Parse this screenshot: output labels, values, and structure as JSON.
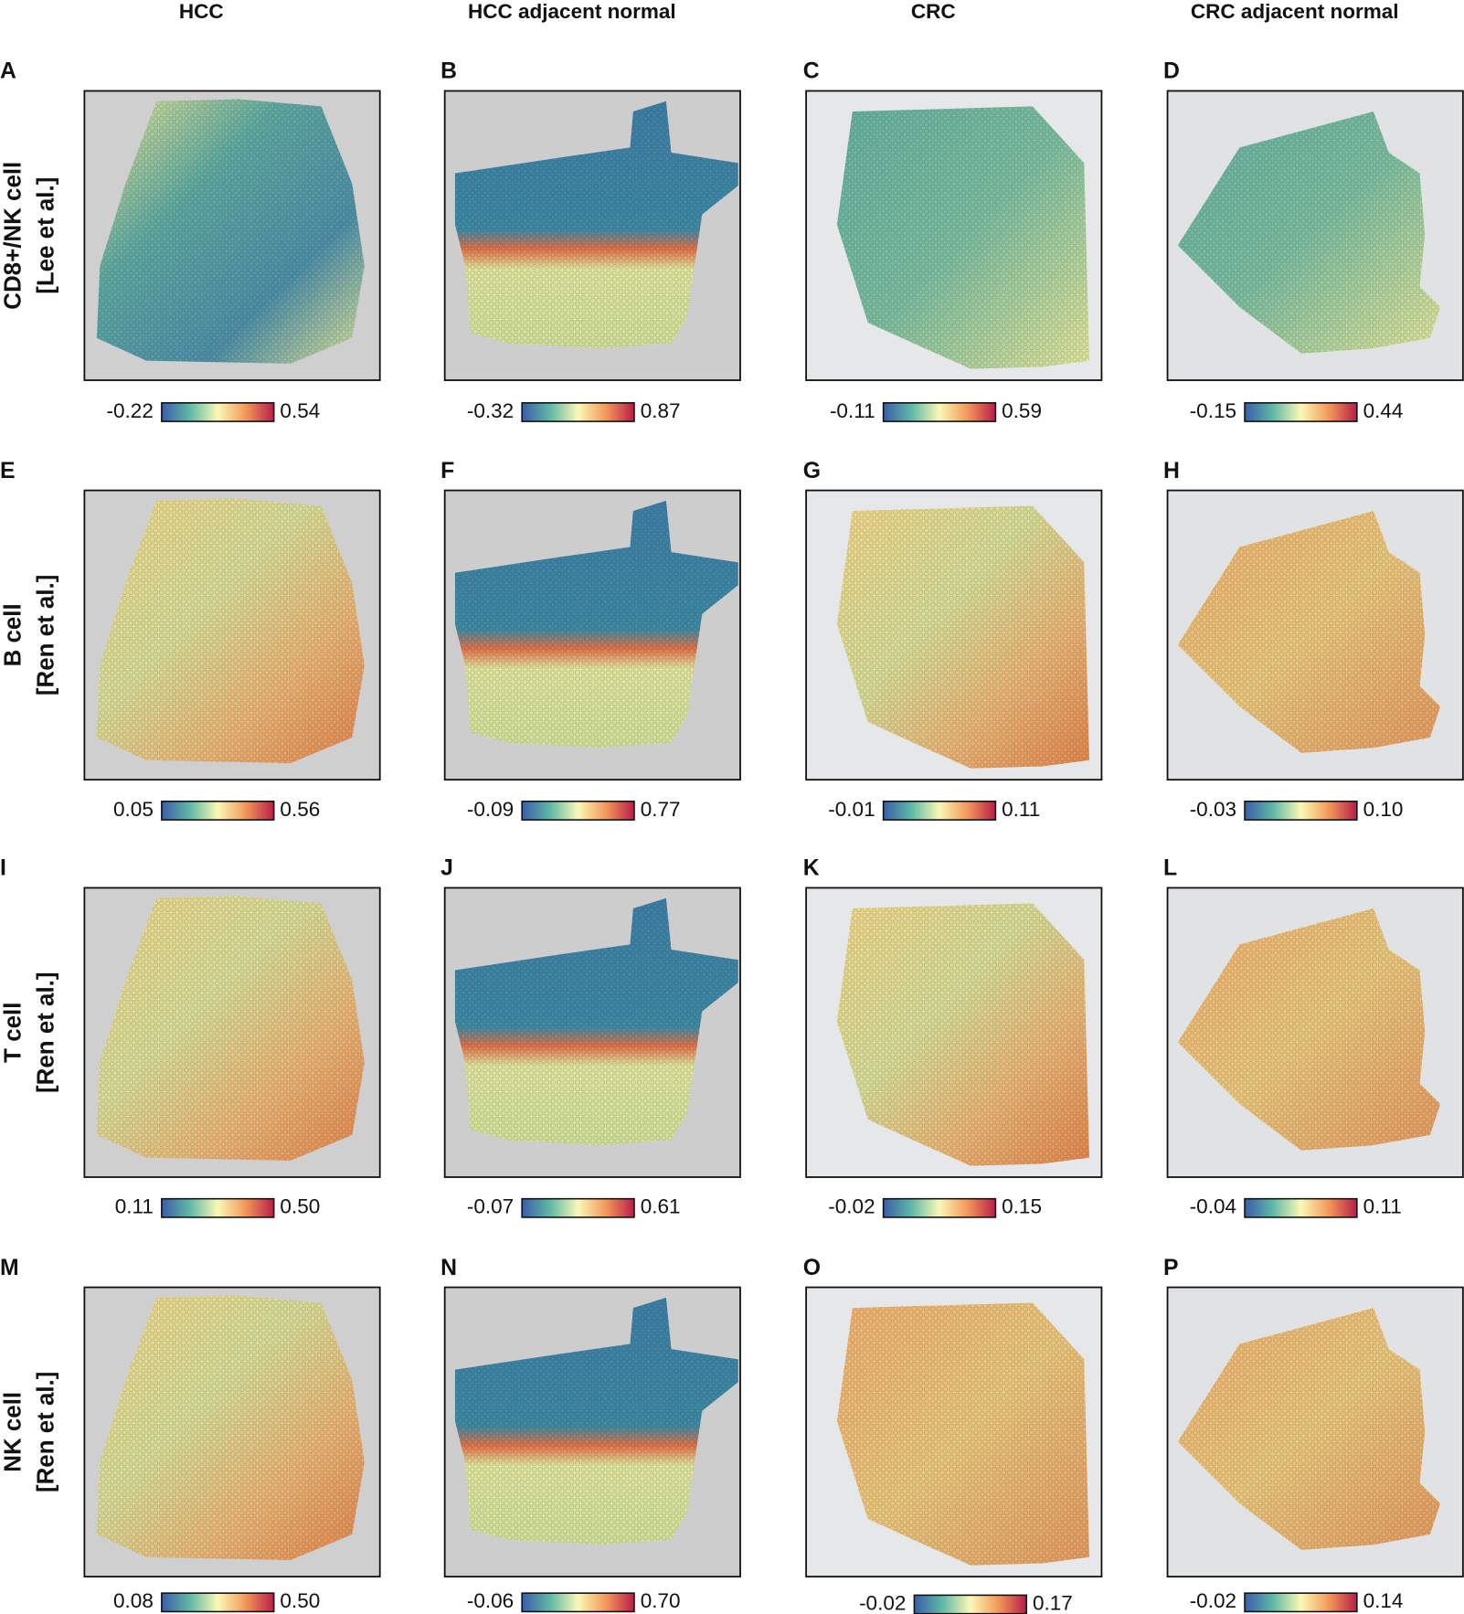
{
  "columns": [
    "HCC",
    "HCC adjacent normal",
    "CRC",
    "CRC adjacent normal"
  ],
  "rows": [
    {
      "lines": [
        "CD8+/NK cell",
        "[Lee et al.]"
      ]
    },
    {
      "lines": [
        "B cell",
        "[Ren et al.]"
      ]
    },
    {
      "lines": [
        "T cell",
        "[Ren et al.]"
      ]
    },
    {
      "lines": [
        "NK cell",
        "[Ren et al.]"
      ]
    }
  ],
  "panels": [
    {
      "letter": "A",
      "min": "-0.22",
      "max": "0.54"
    },
    {
      "letter": "B",
      "min": "-0.32",
      "max": "0.87"
    },
    {
      "letter": "C",
      "min": "-0.11",
      "max": "0.59"
    },
    {
      "letter": "D",
      "min": "-0.15",
      "max": "0.44"
    },
    {
      "letter": "E",
      "min": "0.05",
      "max": "0.56"
    },
    {
      "letter": "F",
      "min": "-0.09",
      "max": "0.77"
    },
    {
      "letter": "G",
      "min": "-0.01",
      "max": "0.11"
    },
    {
      "letter": "H",
      "min": "-0.03",
      "max": "0.10"
    },
    {
      "letter": "I",
      "min": "0.11",
      "max": "0.50"
    },
    {
      "letter": "J",
      "min": "-0.07",
      "max": "0.61"
    },
    {
      "letter": "K",
      "min": "-0.02",
      "max": "0.15"
    },
    {
      "letter": "L",
      "min": "-0.04",
      "max": "0.11"
    },
    {
      "letter": "M",
      "min": "0.08",
      "max": "0.50"
    },
    {
      "letter": "N",
      "min": "-0.06",
      "max": "0.70"
    },
    {
      "letter": "O",
      "min": "-0.02",
      "max": "0.17"
    },
    {
      "letter": "P",
      "min": "-0.02",
      "max": "0.14"
    }
  ]
}
